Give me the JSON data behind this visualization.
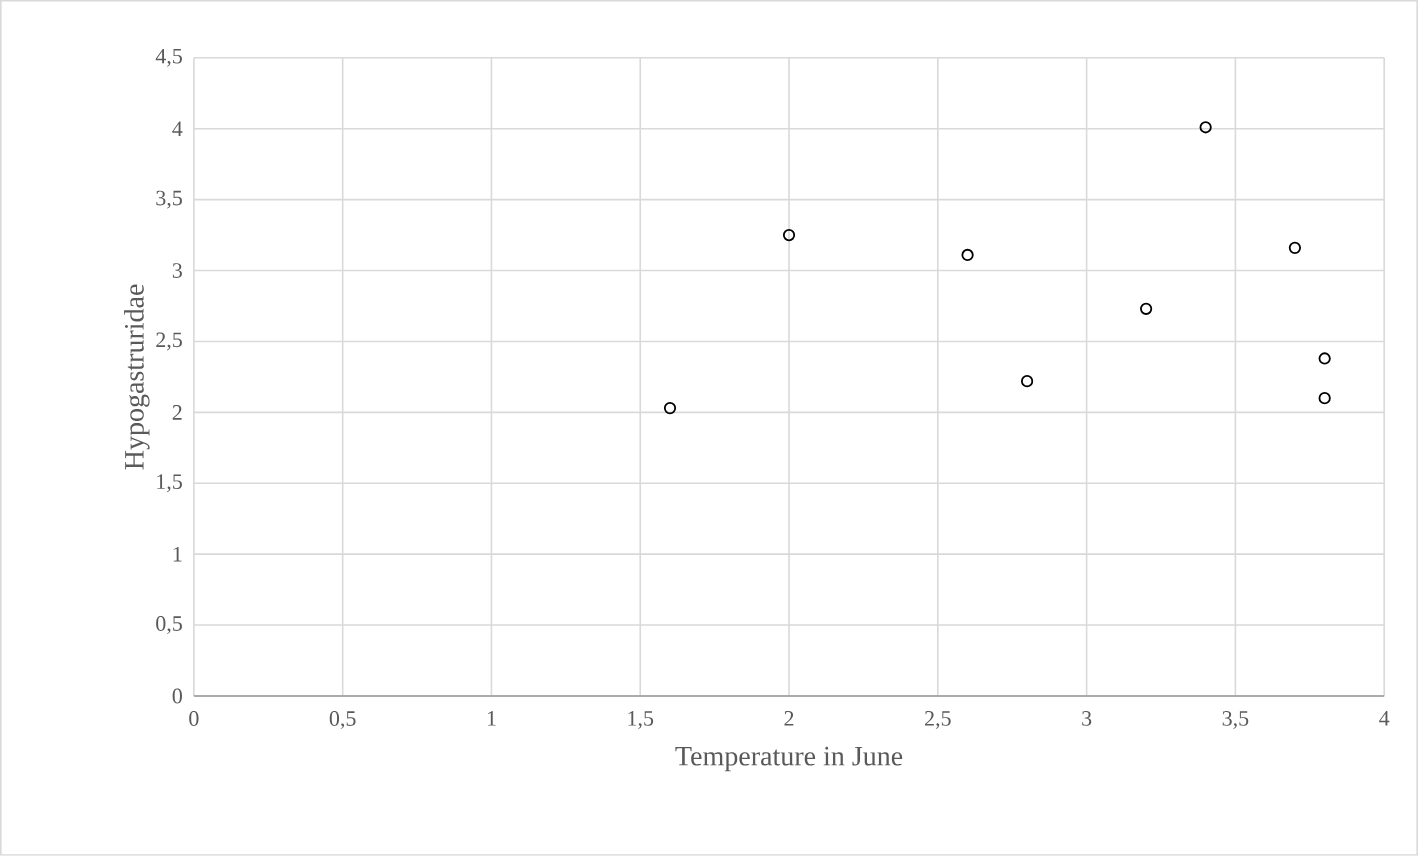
{
  "chart_data": {
    "type": "scatter",
    "xlabel": "Temperature in June",
    "ylabel": "Hypogastruridae",
    "x": [
      1.6,
      2.0,
      2.6,
      2.8,
      3.2,
      3.4,
      3.7,
      3.8,
      3.8
    ],
    "series": [
      {
        "color": "#000000",
        "values": [
          2.03,
          3.25,
          3.11,
          2.22,
          2.73,
          4.01,
          3.16,
          2.38,
          2.1
        ]
      }
    ],
    "xlim": [
      0,
      4
    ],
    "ylim": [
      0,
      4.5
    ],
    "xticks": [
      0,
      {
        "value": 0.5,
        "label": "0,5"
      },
      1,
      {
        "value": 1.5,
        "label": "1,5"
      },
      2,
      {
        "value": 2.5,
        "label": "2,5"
      },
      3,
      {
        "value": 3.5,
        "label": "3,5"
      },
      4
    ],
    "yticks": [
      0,
      {
        "value": 0.5,
        "label": "0,5"
      },
      1,
      {
        "value": 1.5,
        "label": "1,5"
      },
      2,
      {
        "value": 2.5,
        "label": "2,5"
      },
      3,
      {
        "value": 3.5,
        "label": "3,5"
      },
      4,
      {
        "value": 4.5,
        "label": "4,5"
      }
    ],
    "grid": true,
    "marker": "circle"
  }
}
